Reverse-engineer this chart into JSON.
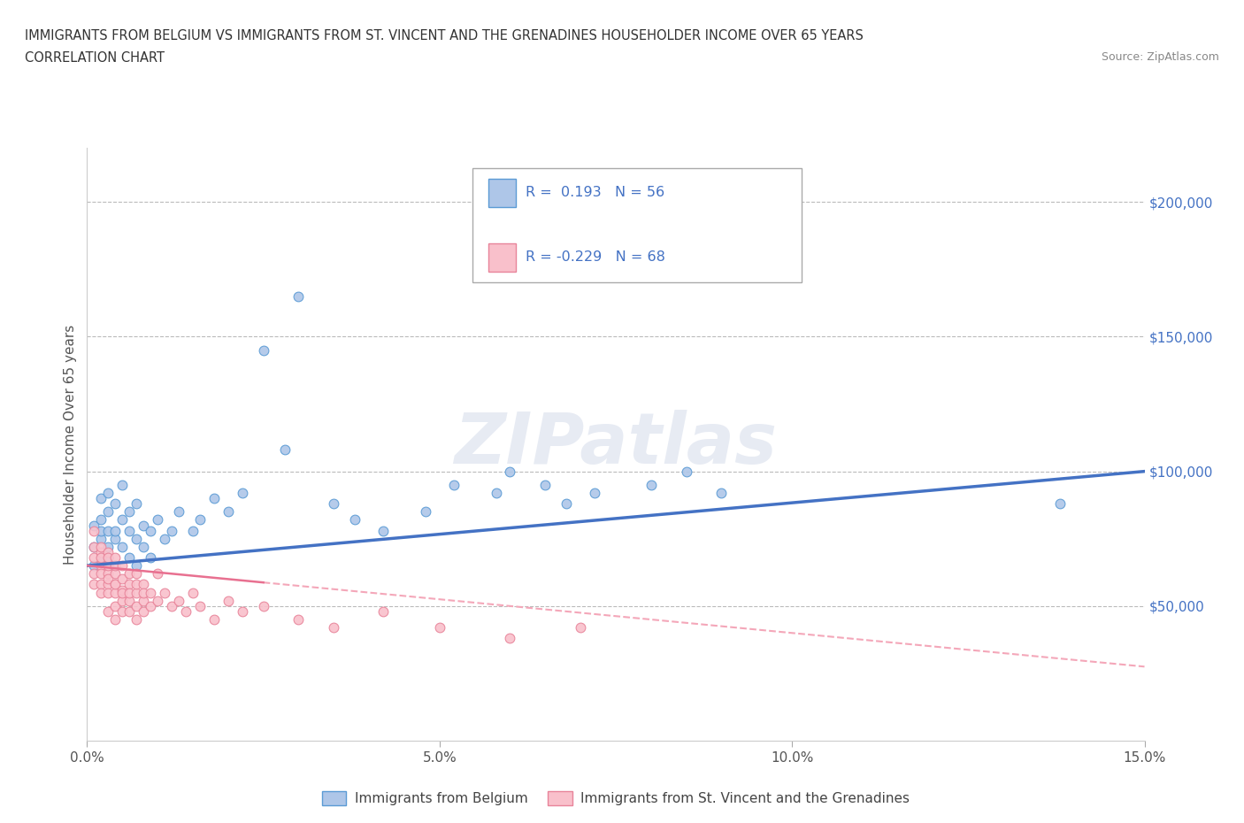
{
  "title_line1": "IMMIGRANTS FROM BELGIUM VS IMMIGRANTS FROM ST. VINCENT AND THE GRENADINES HOUSEHOLDER INCOME OVER 65 YEARS",
  "title_line2": "CORRELATION CHART",
  "source_text": "Source: ZipAtlas.com",
  "ylabel": "Householder Income Over 65 years",
  "xlim": [
    0.0,
    0.15
  ],
  "ylim": [
    0,
    220000
  ],
  "xticks": [
    0.0,
    0.05,
    0.1,
    0.15
  ],
  "xticklabels": [
    "0.0%",
    "5.0%",
    "10.0%",
    "15.0%"
  ],
  "yticks_right": [
    0,
    50000,
    100000,
    150000,
    200000
  ],
  "ytick_labels_right": [
    "",
    "$50,000",
    "$100,000",
    "$150,000",
    "$200,000"
  ],
  "belgium_fill_color": "#aec6e8",
  "belgium_edge_color": "#5b9bd5",
  "svg_fill_color": "#f9c0cb",
  "svg_edge_color": "#e8849a",
  "belgium_line_color": "#4472c4",
  "svg_line_color": "#f4a7b9",
  "grid_color": "#bbbbbb",
  "background_color": "#ffffff",
  "watermark": "ZIPatlas",
  "belgium_scatter_x": [
    0.001,
    0.001,
    0.001,
    0.002,
    0.002,
    0.002,
    0.002,
    0.002,
    0.003,
    0.003,
    0.003,
    0.003,
    0.003,
    0.004,
    0.004,
    0.004,
    0.004,
    0.005,
    0.005,
    0.005,
    0.006,
    0.006,
    0.006,
    0.007,
    0.007,
    0.007,
    0.008,
    0.008,
    0.009,
    0.009,
    0.01,
    0.011,
    0.012,
    0.013,
    0.015,
    0.016,
    0.018,
    0.02,
    0.022,
    0.025,
    0.028,
    0.03,
    0.035,
    0.038,
    0.042,
    0.048,
    0.052,
    0.058,
    0.06,
    0.065,
    0.068,
    0.072,
    0.08,
    0.085,
    0.09,
    0.138
  ],
  "belgium_scatter_y": [
    72000,
    80000,
    65000,
    75000,
    82000,
    68000,
    90000,
    78000,
    72000,
    85000,
    92000,
    78000,
    68000,
    75000,
    88000,
    65000,
    78000,
    72000,
    82000,
    95000,
    78000,
    68000,
    85000,
    75000,
    65000,
    88000,
    72000,
    80000,
    78000,
    68000,
    82000,
    75000,
    78000,
    85000,
    78000,
    82000,
    90000,
    85000,
    92000,
    145000,
    108000,
    165000,
    88000,
    82000,
    78000,
    85000,
    95000,
    92000,
    100000,
    95000,
    88000,
    92000,
    95000,
    100000,
    92000,
    88000
  ],
  "svgc_scatter_x": [
    0.001,
    0.001,
    0.001,
    0.001,
    0.001,
    0.002,
    0.002,
    0.002,
    0.002,
    0.002,
    0.002,
    0.002,
    0.003,
    0.003,
    0.003,
    0.003,
    0.003,
    0.003,
    0.003,
    0.003,
    0.004,
    0.004,
    0.004,
    0.004,
    0.004,
    0.004,
    0.004,
    0.004,
    0.005,
    0.005,
    0.005,
    0.005,
    0.005,
    0.005,
    0.006,
    0.006,
    0.006,
    0.006,
    0.006,
    0.007,
    0.007,
    0.007,
    0.007,
    0.007,
    0.008,
    0.008,
    0.008,
    0.008,
    0.009,
    0.009,
    0.01,
    0.01,
    0.011,
    0.012,
    0.013,
    0.014,
    0.015,
    0.016,
    0.018,
    0.02,
    0.022,
    0.025,
    0.03,
    0.035,
    0.042,
    0.05,
    0.06,
    0.07
  ],
  "svgc_scatter_y": [
    68000,
    72000,
    62000,
    58000,
    78000,
    65000,
    70000,
    58000,
    62000,
    55000,
    68000,
    72000,
    62000,
    58000,
    65000,
    55000,
    70000,
    48000,
    60000,
    68000,
    58000,
    62000,
    55000,
    50000,
    65000,
    68000,
    45000,
    58000,
    56000,
    60000,
    52000,
    65000,
    48000,
    55000,
    58000,
    52000,
    62000,
    48000,
    55000,
    55000,
    58000,
    50000,
    45000,
    62000,
    52000,
    58000,
    48000,
    55000,
    55000,
    50000,
    52000,
    62000,
    55000,
    50000,
    52000,
    48000,
    55000,
    50000,
    45000,
    52000,
    48000,
    50000,
    45000,
    42000,
    48000,
    42000,
    38000,
    42000
  ]
}
